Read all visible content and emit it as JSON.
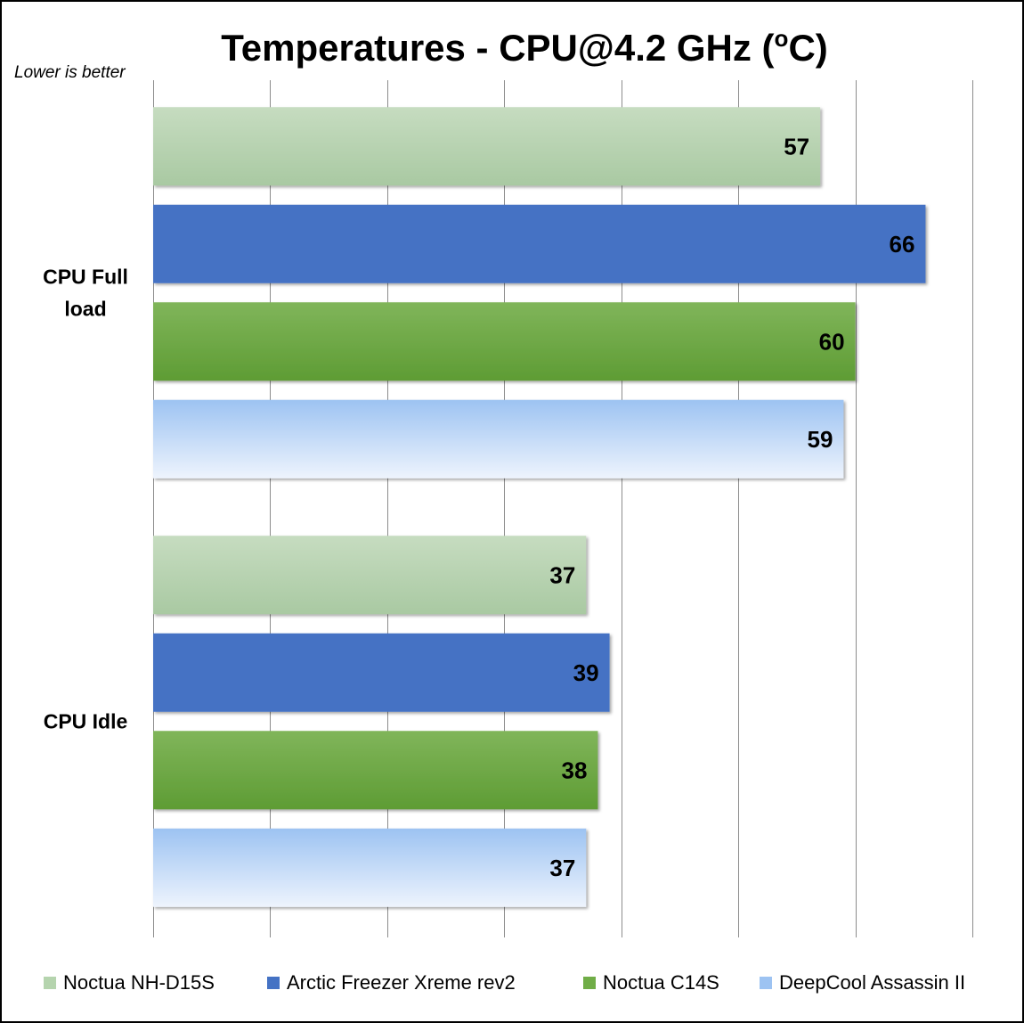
{
  "chart_data": {
    "type": "bar",
    "orientation": "horizontal",
    "title": "Temperatures - CPU@4.2 GHz (",
    "title_superscript": "o",
    "title_suffix": "C)",
    "subtitle": "Lower is better",
    "categories": [
      "CPU Full load",
      "CPU Idle"
    ],
    "xlim": [
      0,
      70
    ],
    "x_gridline_step": 10,
    "grid": true,
    "legend_position": "bottom",
    "series": [
      {
        "name": "Noctua NH-D15S",
        "values": [
          57,
          37
        ],
        "color": "#b5d4ae"
      },
      {
        "name": "Arctic Freezer Xreme rev2",
        "values": [
          66,
          39
        ],
        "color": "#4472c4"
      },
      {
        "name": "Noctua C14S",
        "values": [
          60,
          38
        ],
        "color": "#70ad47"
      },
      {
        "name": "DeepCool Assassin II",
        "values": [
          59,
          37
        ],
        "color": "#9dc3f2"
      }
    ]
  }
}
